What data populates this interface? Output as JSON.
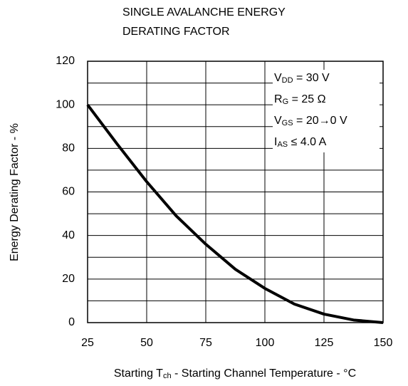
{
  "chart_data": {
    "type": "line",
    "title": [
      "SINGLE AVALANCHE ENERGY",
      "DERATING FACTOR"
    ],
    "y_label": "Energy Derating Factor - %",
    "x_label": {
      "main": "Starting T",
      "sub": "ch",
      "rest": " - Starting Channel Temperature - °C"
    },
    "annotations": [
      {
        "main": "V",
        "sub": "DD",
        "rest": " = 30 V"
      },
      {
        "main": "R",
        "sub": "G",
        "rest": " = 25 Ω"
      },
      {
        "main": "V",
        "sub": "GS",
        "rest": " = 20→0 V"
      },
      {
        "main": "I",
        "sub": "AS",
        "rest": " ≤ 4.0 A"
      }
    ],
    "x": [
      25,
      37.5,
      50,
      62.5,
      75,
      87.5,
      100,
      112.5,
      125,
      137.5,
      150
    ],
    "values": [
      100,
      82,
      64.7,
      49,
      36,
      24.5,
      15.7,
      8.5,
      3.9,
      1.2,
      0
    ],
    "color": "#000000",
    "xlim": [
      25,
      150
    ],
    "xticks": [
      25,
      50,
      75,
      100,
      125,
      150
    ],
    "ylim": [
      0,
      120
    ],
    "yticks": [
      0,
      20,
      40,
      60,
      80,
      100,
      120
    ],
    "y_minor_grid": [
      10,
      30,
      50,
      70,
      90,
      110
    ],
    "grid": true
  }
}
